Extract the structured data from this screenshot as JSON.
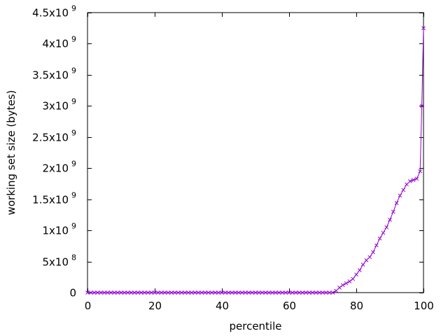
{
  "chart_data": {
    "type": "line",
    "title": "",
    "xlabel": "percentile",
    "ylabel": "working set size (bytes)",
    "xlim": [
      0,
      100
    ],
    "ylim": [
      0,
      4500000000
    ],
    "grid": false,
    "legend": "none",
    "marker": "cross",
    "line_color": "#9400d3",
    "x_ticks": [
      {
        "value": 0,
        "label": "0"
      },
      {
        "value": 20,
        "label": "20"
      },
      {
        "value": 40,
        "label": "40"
      },
      {
        "value": 60,
        "label": "60"
      },
      {
        "value": 80,
        "label": "80"
      },
      {
        "value": 100,
        "label": "100"
      }
    ],
    "y_ticks": [
      {
        "value": 0,
        "mantissa": "0",
        "exponent": ""
      },
      {
        "value": 500000000,
        "mantissa": "5x10",
        "exponent": "8"
      },
      {
        "value": 1000000000,
        "mantissa": "1x10",
        "exponent": "9"
      },
      {
        "value": 1500000000,
        "mantissa": "1.5x10",
        "exponent": "9"
      },
      {
        "value": 2000000000,
        "mantissa": "2x10",
        "exponent": "9"
      },
      {
        "value": 2500000000,
        "mantissa": "2.5x10",
        "exponent": "9"
      },
      {
        "value": 3000000000,
        "mantissa": "3x10",
        "exponent": "9"
      },
      {
        "value": 3500000000,
        "mantissa": "3.5x10",
        "exponent": "9"
      },
      {
        "value": 4000000000,
        "mantissa": "4x10",
        "exponent": "9"
      },
      {
        "value": 4500000000,
        "mantissa": "4.5x10",
        "exponent": "9"
      }
    ],
    "series": [
      {
        "x": [
          0,
          1,
          2,
          3,
          4,
          5,
          6,
          7,
          8,
          9,
          10,
          11,
          12,
          13,
          14,
          15,
          16,
          17,
          18,
          19,
          20,
          21,
          22,
          23,
          24,
          25,
          26,
          27,
          28,
          29,
          30,
          31,
          32,
          33,
          34,
          35,
          36,
          37,
          38,
          39,
          40,
          41,
          42,
          43,
          44,
          45,
          46,
          47,
          48,
          49,
          50,
          51,
          52,
          53,
          54,
          55,
          56,
          57,
          58,
          59,
          60,
          61,
          62,
          63,
          64,
          65,
          66,
          67,
          68,
          69,
          70,
          71,
          72,
          73,
          74,
          75,
          76,
          77,
          78,
          79,
          80,
          81,
          82,
          83,
          84,
          85,
          86,
          87,
          88,
          89,
          90,
          91,
          92,
          93,
          94,
          95,
          96,
          97,
          98,
          99,
          99.5,
          100
        ],
        "y": [
          0,
          0,
          0,
          0,
          0,
          0,
          0,
          0,
          0,
          0,
          0,
          0,
          0,
          0,
          0,
          0,
          0,
          0,
          0,
          0,
          0,
          0,
          0,
          0,
          0,
          0,
          0,
          0,
          0,
          0,
          0,
          0,
          0,
          0,
          0,
          0,
          0,
          0,
          0,
          0,
          0,
          0,
          0,
          0,
          0,
          0,
          0,
          0,
          0,
          0,
          0,
          0,
          0,
          0,
          0,
          0,
          0,
          0,
          0,
          0,
          0,
          0,
          0,
          0,
          0,
          0,
          0,
          0,
          0,
          0,
          0,
          0,
          0,
          0,
          30000000,
          80000000,
          120000000,
          150000000,
          180000000,
          220000000,
          290000000,
          360000000,
          450000000,
          520000000,
          570000000,
          650000000,
          760000000,
          870000000,
          960000000,
          1050000000,
          1170000000,
          1300000000,
          1440000000,
          1560000000,
          1650000000,
          1740000000,
          1790000000,
          1810000000,
          1830000000,
          1950000000,
          3000000000,
          4250000000
        ]
      }
    ]
  }
}
